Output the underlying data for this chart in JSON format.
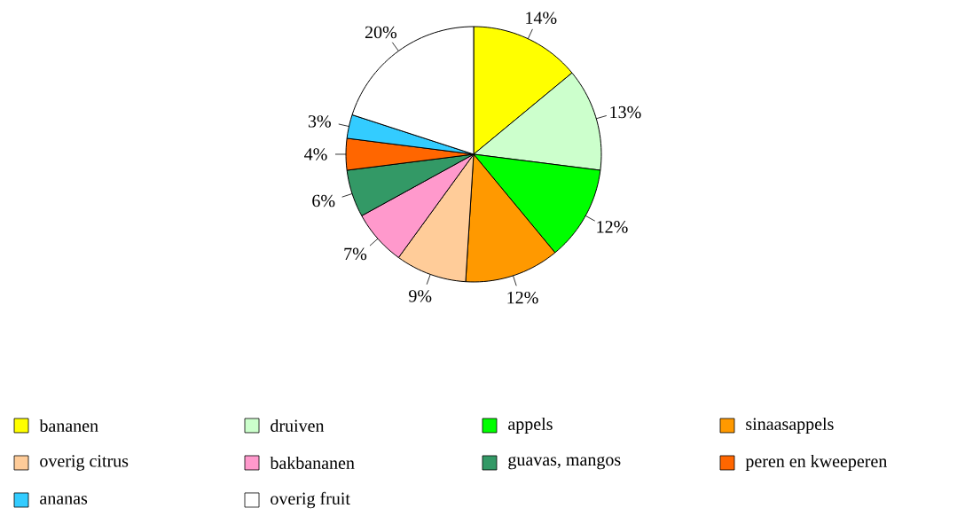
{
  "chart_data": {
    "type": "pie",
    "categories": [
      "bananen",
      "druiven",
      "appels",
      "sinaasappels",
      "overig citrus",
      "bakbananen",
      "guavas, mangos",
      "peren en kweeperen",
      "ananas",
      "overig fruit"
    ],
    "values": [
      14,
      13,
      12,
      12,
      9,
      7,
      6,
      4,
      3,
      20
    ],
    "value_labels": [
      "14%",
      "13%",
      "12%",
      "12%",
      "9%",
      "7%",
      "6%",
      "4%",
      "3%",
      "20%"
    ],
    "colors": [
      "#ffff00",
      "#ccffcc",
      "#00ff00",
      "#ff9900",
      "#ffcc99",
      "#ff99cc",
      "#339966",
      "#ff6600",
      "#33ccff",
      "#ffffff"
    ],
    "legend": "bottom"
  }
}
